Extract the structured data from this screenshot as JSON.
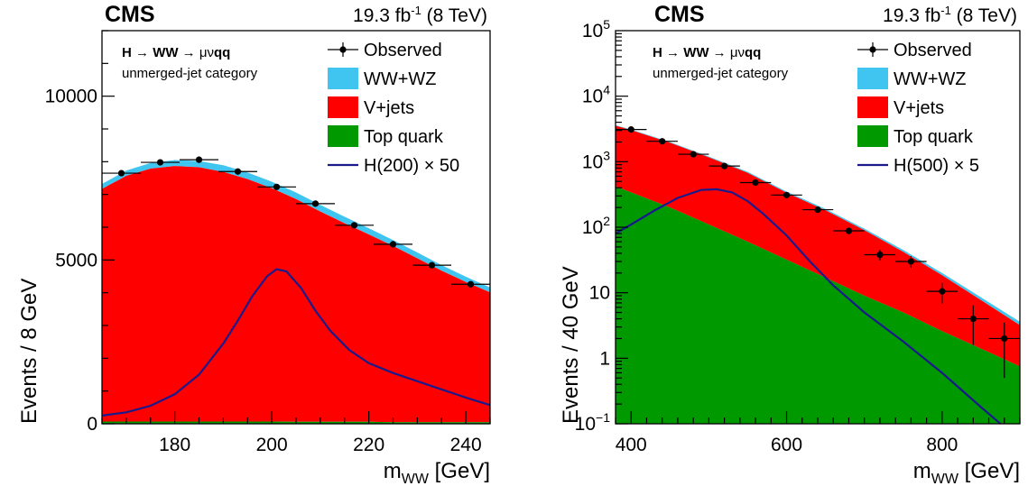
{
  "chart_data": [
    {
      "type": "area",
      "panel": "left",
      "experiment": "CMS",
      "lumi": "19.3 fb",
      "lumi_sup": "-1",
      "energy": " (8 TeV)",
      "process": {
        "a": "H",
        "arrow1": " → ",
        "b": "WW",
        "arrow2": " → ",
        "c": "μν",
        "d": "qq"
      },
      "category": "unmerged-jet category",
      "xlabel": "m",
      "xlabel_sub": "WW",
      "xlabel_unit": " [GeV]",
      "ylabel": "Events / 8 GeV",
      "xlim": [
        165,
        245
      ],
      "ylim": [
        0,
        12000
      ],
      "xticks": [
        180,
        200,
        220,
        240
      ],
      "yticks": [
        0,
        5000,
        10000
      ],
      "ytick_labels": [
        "0",
        "5000",
        "10000"
      ],
      "legend_position": "top-right",
      "legend": [
        {
          "key": "observed",
          "text": "Observed",
          "marker": "point-errorbar"
        },
        {
          "key": "ww",
          "text": "WW+WZ",
          "marker": "fill"
        },
        {
          "key": "vjets",
          "text": "V+jets",
          "marker": "fill"
        },
        {
          "key": "top",
          "text": "Top quark",
          "marker": "fill"
        },
        {
          "key": "signal",
          "text": "H(200) × 50",
          "marker": "line"
        }
      ],
      "colors": {
        "ww": "#3fc5f0",
        "vjets": "#ff0000",
        "top": "#009a00",
        "signal": "#1a1a8c",
        "observed": "#000000"
      },
      "stack": {
        "x": [
          165,
          170,
          175,
          180,
          185,
          190,
          195,
          200,
          205,
          210,
          215,
          220,
          225,
          230,
          235,
          240,
          245
        ],
        "top": [
          70,
          70,
          70,
          70,
          70,
          70,
          70,
          70,
          60,
          60,
          60,
          60,
          50,
          50,
          50,
          50,
          50
        ],
        "vjets": [
          7100,
          7500,
          7720,
          7800,
          7760,
          7620,
          7400,
          7120,
          6800,
          6420,
          6060,
          5720,
          5380,
          5000,
          4620,
          4280,
          3960
        ],
        "ww": [
          150,
          160,
          170,
          180,
          190,
          200,
          200,
          200,
          200,
          200,
          200,
          190,
          180,
          180,
          170,
          160,
          150
        ]
      },
      "observed": {
        "x": [
          169,
          177,
          185,
          193,
          201,
          209,
          217,
          225,
          233,
          241
        ],
        "y": [
          7650,
          7980,
          8060,
          7700,
          7230,
          6720,
          6060,
          5480,
          4840,
          4260
        ],
        "yerr": [
          90,
          90,
          90,
          90,
          85,
          82,
          78,
          74,
          70,
          65
        ],
        "xerr": 4
      },
      "signal": {
        "x": [
          165,
          170,
          175,
          180,
          185,
          190,
          193,
          196,
          199,
          201,
          203,
          206,
          209,
          212,
          216,
          220,
          225,
          230,
          235,
          240,
          245
        ],
        "y": [
          250,
          350,
          550,
          900,
          1500,
          2450,
          3150,
          3900,
          4500,
          4720,
          4650,
          4150,
          3450,
          2850,
          2250,
          1850,
          1550,
          1300,
          1050,
          800,
          570
        ]
      }
    },
    {
      "type": "area",
      "panel": "right",
      "experiment": "CMS",
      "lumi": "19.3 fb",
      "lumi_sup": "-1",
      "energy": " (8 TeV)",
      "process": {
        "a": "H",
        "arrow1": " → ",
        "b": "WW",
        "arrow2": " → ",
        "c": "μν",
        "d": "qq"
      },
      "category": "unmerged-jet category",
      "xlabel": "m",
      "xlabel_sub": "WW",
      "xlabel_unit": " [GeV]",
      "ylabel": "Events / 40 GeV",
      "xlim": [
        380,
        900
      ],
      "ylim": [
        0.1,
        100000
      ],
      "log_y": true,
      "xticks": [
        400,
        600,
        800
      ],
      "yticks": [
        0.1,
        1,
        10,
        100,
        1000,
        10000,
        100000
      ],
      "ytick_labels": [
        {
          "base": "10",
          "exp": "−1"
        },
        {
          "base": "1",
          "exp": ""
        },
        {
          "base": "10",
          "exp": ""
        },
        {
          "base": "10",
          "exp": "2"
        },
        {
          "base": "10",
          "exp": "3"
        },
        {
          "base": "10",
          "exp": "4"
        },
        {
          "base": "10",
          "exp": "5"
        }
      ],
      "legend_position": "top-right",
      "legend": [
        {
          "key": "observed",
          "text": "Observed",
          "marker": "point-errorbar"
        },
        {
          "key": "ww",
          "text": "WW+WZ",
          "marker": "fill"
        },
        {
          "key": "vjets",
          "text": "V+jets",
          "marker": "fill"
        },
        {
          "key": "top",
          "text": "Top quark",
          "marker": "fill"
        },
        {
          "key": "signal",
          "text": "H(500) × 5",
          "marker": "line"
        }
      ],
      "colors": {
        "ww": "#3fc5f0",
        "vjets": "#ff0000",
        "top": "#009a00",
        "signal": "#1a1a8c",
        "observed": "#000000"
      },
      "stack": {
        "x": [
          380,
          400,
          450,
          500,
          550,
          600,
          650,
          700,
          750,
          800,
          850,
          900
        ],
        "top": [
          420,
          340,
          200,
          110,
          60,
          32,
          17,
          9,
          5,
          2.6,
          1.4,
          0.75
        ],
        "total": [
          3600,
          3100,
          2000,
          1200,
          700,
          350,
          190,
          95,
          45,
          20,
          8.5,
          3.6
        ],
        "ww": [
          60,
          55,
          45,
          35,
          25,
          15,
          9,
          5,
          3,
          1.5,
          0.8,
          0.4
        ]
      },
      "observed": {
        "x": [
          400,
          440,
          480,
          520,
          560,
          600,
          640,
          680,
          720,
          760,
          800,
          840,
          880
        ],
        "y": [
          3100,
          2050,
          1300,
          860,
          480,
          310,
          185,
          88,
          38,
          30,
          10.5,
          4,
          2
        ],
        "yerr_rel": [
          0.02,
          0.025,
          0.03,
          0.035,
          0.05,
          0.06,
          0.08,
          0.11,
          0.18,
          0.2,
          0.35,
          0.6,
          0.75
        ],
        "xerr": 20
      },
      "signal": {
        "x": [
          380,
          400,
          430,
          460,
          490,
          510,
          530,
          550,
          570,
          600,
          630,
          660,
          700,
          750,
          800,
          850,
          875,
          900
        ],
        "y": [
          80,
          110,
          180,
          280,
          370,
          380,
          340,
          250,
          160,
          75,
          30,
          13,
          5,
          1.8,
          0.6,
          0.18,
          0.1,
          0.05
        ]
      }
    }
  ]
}
